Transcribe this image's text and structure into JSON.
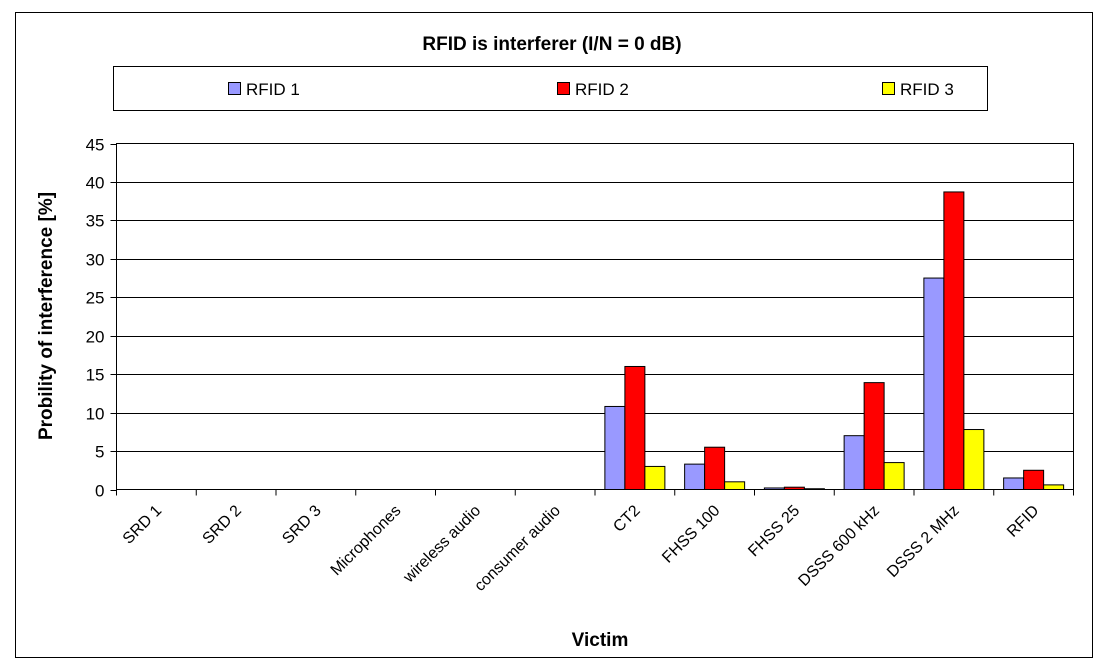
{
  "chart_data": {
    "type": "bar",
    "title": "RFID is interferer (I/N = 0 dB)",
    "xlabel": "Victim",
    "ylabel": "Probility of interference [%]",
    "ylim": [
      0,
      45
    ],
    "yticks": [
      0,
      5,
      10,
      15,
      20,
      25,
      30,
      35,
      40,
      45
    ],
    "grid": true,
    "legend_position": "top",
    "categories": [
      "SRD 1",
      "SRD 2",
      "SRD 3",
      "Microphones",
      "wireless audio",
      "consumer audio",
      "CT2",
      "FHSS 100",
      "FHSS 25",
      "DSSS 600 kHz",
      "DSSS 2 MHz",
      "RFID"
    ],
    "series": [
      {
        "name": "RFID 1",
        "color": "#9999ff",
        "values": [
          0,
          0,
          0,
          0,
          0,
          0,
          10.8,
          3.3,
          0.2,
          7.0,
          27.5,
          1.5
        ]
      },
      {
        "name": "RFID 2",
        "color": "#ff0000",
        "values": [
          0,
          0,
          0,
          0,
          0,
          0,
          16.0,
          5.5,
          0.3,
          13.9,
          38.7,
          2.5
        ]
      },
      {
        "name": "RFID 3",
        "color": "#ffff00",
        "values": [
          0,
          0,
          0,
          0,
          0,
          0,
          3.0,
          1.0,
          0.1,
          3.5,
          7.8,
          0.6
        ]
      }
    ]
  }
}
